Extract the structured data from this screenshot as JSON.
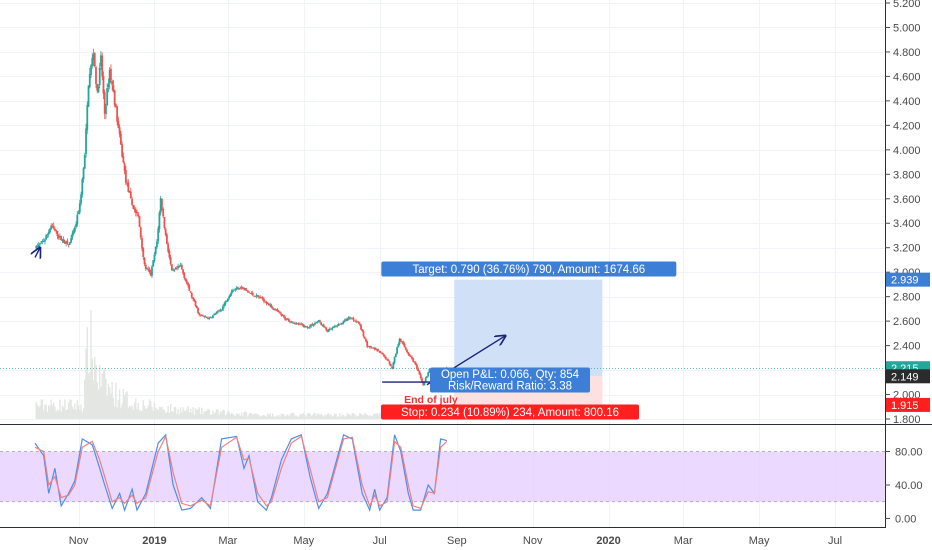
{
  "colors": {
    "up": "#26a69a",
    "down": "#ef5350",
    "target_zone": "#cfe0f7",
    "stop_zone": "#fde0e0",
    "target_label": "#3d7fd6",
    "stop_label": "#ff1f1f",
    "stoch_band": "#e6ccff",
    "stoch_k": "#4f8ee8",
    "stoch_d": "#f08080",
    "grid": "#f0f3fa",
    "drawing": "#1a237e",
    "annotation": "#e53935"
  },
  "chart_data": [
    {
      "type": "candlestick",
      "title": "",
      "price_scale": {
        "ticks": [
          "5.200",
          "5.000",
          "4.800",
          "4.600",
          "4.400",
          "4.200",
          "4.000",
          "3.800",
          "3.600",
          "3.400",
          "3.200",
          "3.000",
          "2.800",
          "2.600",
          "2.400",
          "2.200",
          "2.000",
          "1.800"
        ],
        "range": [
          1.79,
          5.25
        ]
      },
      "time_scale": {
        "labels": [
          "Nov",
          "2019",
          "Mar",
          "May",
          "Jul",
          "Sep",
          "Nov",
          "2020",
          "Mar",
          "May",
          "Jul"
        ],
        "bold": [
          "2019",
          "2020"
        ]
      },
      "price_path": [
        [
          "2018-09-28",
          3.2
        ],
        [
          "2018-10-05",
          3.27
        ],
        [
          "2018-10-10",
          3.38
        ],
        [
          "2018-10-17",
          3.28
        ],
        [
          "2018-10-24",
          3.22
        ],
        [
          "2018-10-29",
          3.35
        ],
        [
          "2018-11-02",
          3.55
        ],
        [
          "2018-11-06",
          3.95
        ],
        [
          "2018-11-09",
          4.55
        ],
        [
          "2018-11-13",
          4.8
        ],
        [
          "2018-11-16",
          4.45
        ],
        [
          "2018-11-19",
          4.75
        ],
        [
          "2018-11-22",
          4.3
        ],
        [
          "2018-11-26",
          4.65
        ],
        [
          "2018-11-30",
          4.4
        ],
        [
          "2018-12-04",
          4.1
        ],
        [
          "2018-12-09",
          3.75
        ],
        [
          "2018-12-14",
          3.55
        ],
        [
          "2018-12-19",
          3.45
        ],
        [
          "2018-12-24",
          3.05
        ],
        [
          "2018-12-29",
          2.98
        ],
        [
          "2019-01-03",
          3.25
        ],
        [
          "2019-01-06",
          3.6
        ],
        [
          "2019-01-10",
          3.3
        ],
        [
          "2019-01-15",
          3.0
        ],
        [
          "2019-01-22",
          3.05
        ],
        [
          "2019-01-29",
          2.85
        ],
        [
          "2019-02-06",
          2.65
        ],
        [
          "2019-02-14",
          2.62
        ],
        [
          "2019-02-24",
          2.7
        ],
        [
          "2019-03-04",
          2.85
        ],
        [
          "2019-03-11",
          2.88
        ],
        [
          "2019-03-20",
          2.82
        ],
        [
          "2019-03-29",
          2.78
        ],
        [
          "2019-04-07",
          2.7
        ],
        [
          "2019-04-16",
          2.62
        ],
        [
          "2019-04-25",
          2.58
        ],
        [
          "2019-05-04",
          2.55
        ],
        [
          "2019-05-13",
          2.6
        ],
        [
          "2019-05-20",
          2.52
        ],
        [
          "2019-05-29",
          2.57
        ],
        [
          "2019-06-07",
          2.63
        ],
        [
          "2019-06-14",
          2.59
        ],
        [
          "2019-06-21",
          2.4
        ],
        [
          "2019-06-29",
          2.36
        ],
        [
          "2019-07-06",
          2.3
        ],
        [
          "2019-07-11",
          2.22
        ],
        [
          "2019-07-17",
          2.46
        ],
        [
          "2019-07-23",
          2.35
        ],
        [
          "2019-07-29",
          2.26
        ],
        [
          "2019-08-05",
          2.08
        ],
        [
          "2019-08-10",
          2.2
        ],
        [
          "2019-08-14",
          2.12
        ],
        [
          "2019-08-19",
          2.2
        ],
        [
          "2019-08-24",
          2.215
        ]
      ],
      "volume_profile": [
        [
          "2018-11-05",
          0.1
        ],
        [
          "2018-11-09",
          0.6
        ],
        [
          "2018-11-13",
          0.45
        ],
        [
          "2018-11-17",
          0.3
        ],
        [
          "2018-11-22",
          0.25
        ],
        [
          "2018-12-01",
          0.18
        ],
        [
          "2018-12-15",
          0.12
        ],
        [
          "2019-01-06",
          0.08
        ],
        [
          "2019-02-15",
          0.05
        ],
        [
          "2019-04-01",
          0.03
        ],
        [
          "2019-07-01",
          0.03
        ],
        [
          "2019-08-24",
          0.03
        ]
      ],
      "position": {
        "type": "long",
        "start": "2019-08-30",
        "end": "2019-12-27",
        "entry": 2.149,
        "target": 2.939,
        "stop": 1.915,
        "target_label": "Target: 0.790 (36.76%) 790, Amount: 1674.66",
        "stop_label": "Stop: 0.234 (10.89%) 234, Amount: 800.16",
        "pnl_line1": "Open P&L: 0.066, Qty: 854",
        "pnl_line2": "Risk/Reward Ratio: 3.38"
      },
      "price_badges": [
        {
          "value": "2.939",
          "price": 2.939,
          "color": "#3d7fd6"
        },
        {
          "value": "2.215",
          "price": 2.215,
          "color": "#26a69a"
        },
        {
          "value": "2.149",
          "price": 2.149,
          "color": "#2b2b2b"
        },
        {
          "value": "1.915",
          "price": 1.915,
          "color": "#ff1f1f"
        }
      ],
      "current_price": 2.215,
      "annotation": {
        "text": "End of july",
        "date": "2019-08-08",
        "price": 1.965
      },
      "drawings": [
        {
          "kind": "line",
          "from": [
            "2019-07-03",
            2.102
          ],
          "to": [
            "2019-08-13",
            2.102
          ]
        },
        {
          "kind": "arrow",
          "from": [
            "2019-08-08",
            2.08
          ],
          "to": [
            "2019-10-10",
            2.48
          ]
        },
        {
          "kind": "arrow",
          "from": [
            "2018-09-27",
            3.12
          ],
          "to": [
            "2018-10-01",
            3.2
          ]
        }
      ]
    },
    {
      "type": "line",
      "title": "",
      "indicator": "stochastic",
      "y_ticks": [
        "80.00",
        "40.00",
        "0.00"
      ],
      "ylim": [
        -10,
        110
      ],
      "band": [
        20,
        80
      ],
      "series": [
        {
          "key": "k",
          "points": [
            [
              "2018-09-27",
              90
            ],
            [
              "2018-10-04",
              75
            ],
            [
              "2018-10-08",
              30
            ],
            [
              "2018-10-13",
              60
            ],
            [
              "2018-10-18",
              15
            ],
            [
              "2018-10-24",
              30
            ],
            [
              "2018-10-29",
              45
            ],
            [
              "2018-11-04",
              95
            ],
            [
              "2018-11-12",
              88
            ],
            [
              "2018-11-18",
              60
            ],
            [
              "2018-11-22",
              40
            ],
            [
              "2018-11-28",
              12
            ],
            [
              "2018-12-04",
              30
            ],
            [
              "2018-12-08",
              10
            ],
            [
              "2018-12-14",
              35
            ],
            [
              "2018-12-18",
              10
            ],
            [
              "2018-12-25",
              30
            ],
            [
              "2019-01-04",
              90
            ],
            [
              "2019-01-10",
              100
            ],
            [
              "2019-01-16",
              40
            ],
            [
              "2019-01-23",
              10
            ],
            [
              "2019-01-30",
              12
            ],
            [
              "2019-02-08",
              25
            ],
            [
              "2019-02-15",
              12
            ],
            [
              "2019-02-24",
              95
            ],
            [
              "2019-03-08",
              98
            ],
            [
              "2019-03-14",
              60
            ],
            [
              "2019-03-18",
              75
            ],
            [
              "2019-03-25",
              20
            ],
            [
              "2019-04-01",
              10
            ],
            [
              "2019-04-05",
              25
            ],
            [
              "2019-04-13",
              70
            ],
            [
              "2019-04-21",
              95
            ],
            [
              "2019-04-29",
              100
            ],
            [
              "2019-05-06",
              50
            ],
            [
              "2019-05-13",
              12
            ],
            [
              "2019-05-20",
              30
            ],
            [
              "2019-06-02",
              100
            ],
            [
              "2019-06-09",
              95
            ],
            [
              "2019-06-17",
              30
            ],
            [
              "2019-06-23",
              10
            ],
            [
              "2019-06-27",
              35
            ],
            [
              "2019-07-01",
              10
            ],
            [
              "2019-07-07",
              25
            ],
            [
              "2019-07-13",
              100
            ],
            [
              "2019-07-18",
              80
            ],
            [
              "2019-07-24",
              30
            ],
            [
              "2019-07-28",
              10
            ],
            [
              "2019-08-03",
              10
            ],
            [
              "2019-08-09",
              40
            ],
            [
              "2019-08-14",
              30
            ],
            [
              "2019-08-19",
              95
            ],
            [
              "2019-08-24",
              93
            ]
          ]
        },
        {
          "key": "d",
          "points": [
            [
              "2018-09-27",
              85
            ],
            [
              "2018-10-04",
              80
            ],
            [
              "2018-10-08",
              40
            ],
            [
              "2018-10-13",
              50
            ],
            [
              "2018-10-18",
              25
            ],
            [
              "2018-10-24",
              28
            ],
            [
              "2018-10-29",
              40
            ],
            [
              "2018-11-04",
              85
            ],
            [
              "2018-11-12",
              92
            ],
            [
              "2018-11-18",
              70
            ],
            [
              "2018-11-22",
              50
            ],
            [
              "2018-11-28",
              20
            ],
            [
              "2018-12-04",
              25
            ],
            [
              "2018-12-08",
              18
            ],
            [
              "2018-12-14",
              28
            ],
            [
              "2018-12-18",
              18
            ],
            [
              "2018-12-25",
              25
            ],
            [
              "2019-01-04",
              80
            ],
            [
              "2019-01-10",
              98
            ],
            [
              "2019-01-16",
              55
            ],
            [
              "2019-01-23",
              18
            ],
            [
              "2019-01-30",
              15
            ],
            [
              "2019-02-08",
              22
            ],
            [
              "2019-02-15",
              15
            ],
            [
              "2019-02-24",
              85
            ],
            [
              "2019-03-08",
              97
            ],
            [
              "2019-03-14",
              70
            ],
            [
              "2019-03-18",
              72
            ],
            [
              "2019-03-25",
              30
            ],
            [
              "2019-04-01",
              15
            ],
            [
              "2019-04-05",
              20
            ],
            [
              "2019-04-13",
              60
            ],
            [
              "2019-04-21",
              90
            ],
            [
              "2019-04-29",
              98
            ],
            [
              "2019-05-06",
              60
            ],
            [
              "2019-05-13",
              20
            ],
            [
              "2019-05-20",
              25
            ],
            [
              "2019-06-02",
              95
            ],
            [
              "2019-06-09",
              97
            ],
            [
              "2019-06-17",
              40
            ],
            [
              "2019-06-23",
              15
            ],
            [
              "2019-06-27",
              28
            ],
            [
              "2019-07-01",
              15
            ],
            [
              "2019-07-07",
              20
            ],
            [
              "2019-07-13",
              92
            ],
            [
              "2019-07-18",
              85
            ],
            [
              "2019-07-24",
              40
            ],
            [
              "2019-07-28",
              15
            ],
            [
              "2019-08-03",
              12
            ],
            [
              "2019-08-09",
              32
            ],
            [
              "2019-08-14",
              30
            ],
            [
              "2019-08-19",
              85
            ],
            [
              "2019-08-24",
              92
            ]
          ]
        }
      ]
    }
  ]
}
